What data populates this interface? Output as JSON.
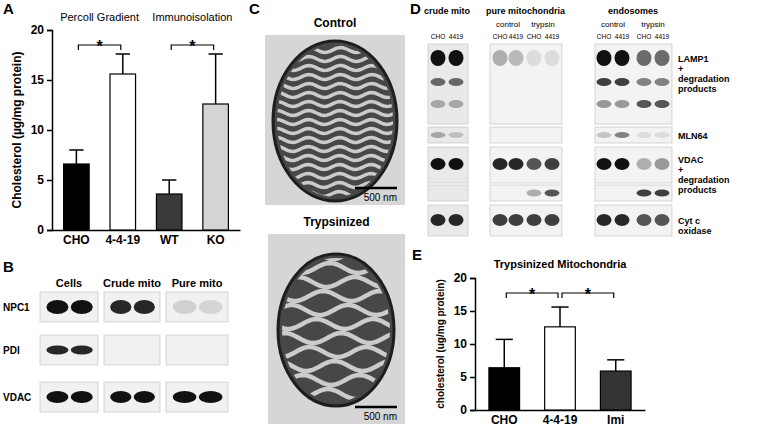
{
  "chart_data": [
    {
      "type": "bar",
      "panel": "A",
      "ylabel": "Cholesterol (µg/mg protein)",
      "categories": [
        "CHO",
        "4-4-19",
        "WT",
        "KO"
      ],
      "values": [
        6.6,
        15.6,
        3.6,
        12.6
      ],
      "errors": [
        1.4,
        2.0,
        1.4,
        5.0
      ],
      "colors": [
        "#000000",
        "#ffffff",
        "#3a3a3a",
        "#d4d4d4"
      ],
      "ylim": [
        0,
        20
      ],
      "yticks": [
        0,
        5,
        10,
        15,
        20
      ],
      "group_labels": [
        {
          "text": "Percoll Gradient",
          "between": [
            "CHO",
            "4-4-19"
          ]
        },
        {
          "text": "Immunoisolation",
          "between": [
            "WT",
            "KO"
          ]
        }
      ],
      "significance": [
        {
          "text": "*",
          "between": [
            "CHO",
            "4-4-19"
          ]
        },
        {
          "text": "*",
          "between": [
            "WT",
            "KO"
          ]
        }
      ]
    },
    {
      "type": "bar",
      "panel": "E",
      "title": "Trypsinized Mitochondria",
      "ylabel": "cholesterol (ug/mg protein)",
      "categories": [
        "CHO",
        "4-4-19",
        "Imi"
      ],
      "values": [
        6.4,
        12.6,
        5.9
      ],
      "errors": [
        4.3,
        3.0,
        1.7
      ],
      "colors": [
        "#000000",
        "#ffffff",
        "#333333"
      ],
      "ylim": [
        0,
        20
      ],
      "yticks": [
        0,
        5,
        10,
        15,
        20
      ],
      "significance": [
        {
          "text": "*",
          "between": [
            "CHO",
            "4-4-19"
          ]
        },
        {
          "text": "*",
          "between": [
            "4-4-19",
            "Imi"
          ]
        }
      ]
    }
  ],
  "blots": [
    {
      "panel": "B",
      "columns": [
        "Cells",
        "Crude mito",
        "Pure mito"
      ],
      "rows": [
        "NPC1",
        "PDI",
        "VDAC"
      ]
    },
    {
      "panel": "D",
      "groups": [
        {
          "label": "crude mito",
          "lanes": [
            "CHO",
            "4419"
          ]
        },
        {
          "label": "pure mitochondria",
          "subgroups": [
            {
              "label": "control",
              "lanes": [
                "CHO",
                "4419"
              ]
            },
            {
              "label": "trypsin",
              "lanes": [
                "CHO",
                "4419"
              ]
            }
          ]
        },
        {
          "label": "endosomes",
          "subgroups": [
            {
              "label": "control",
              "lanes": [
                "CHO",
                "4419"
              ]
            },
            {
              "label": "trypsin",
              "lanes": [
                "CHO",
                "4419"
              ]
            }
          ]
        }
      ],
      "rows": [
        [
          "LAMP1",
          "+",
          "degradation",
          "products"
        ],
        [
          "MLN64"
        ],
        [
          "VDAC",
          "+",
          "degradation",
          "products"
        ],
        [
          "Cyt c",
          "oxidase"
        ]
      ]
    }
  ],
  "micrographs": {
    "panel": "C",
    "images": [
      {
        "label": "Control",
        "scale_bar": "500 nm"
      },
      {
        "label": "Trypsinized",
        "scale_bar": "500 nm"
      }
    ]
  }
}
